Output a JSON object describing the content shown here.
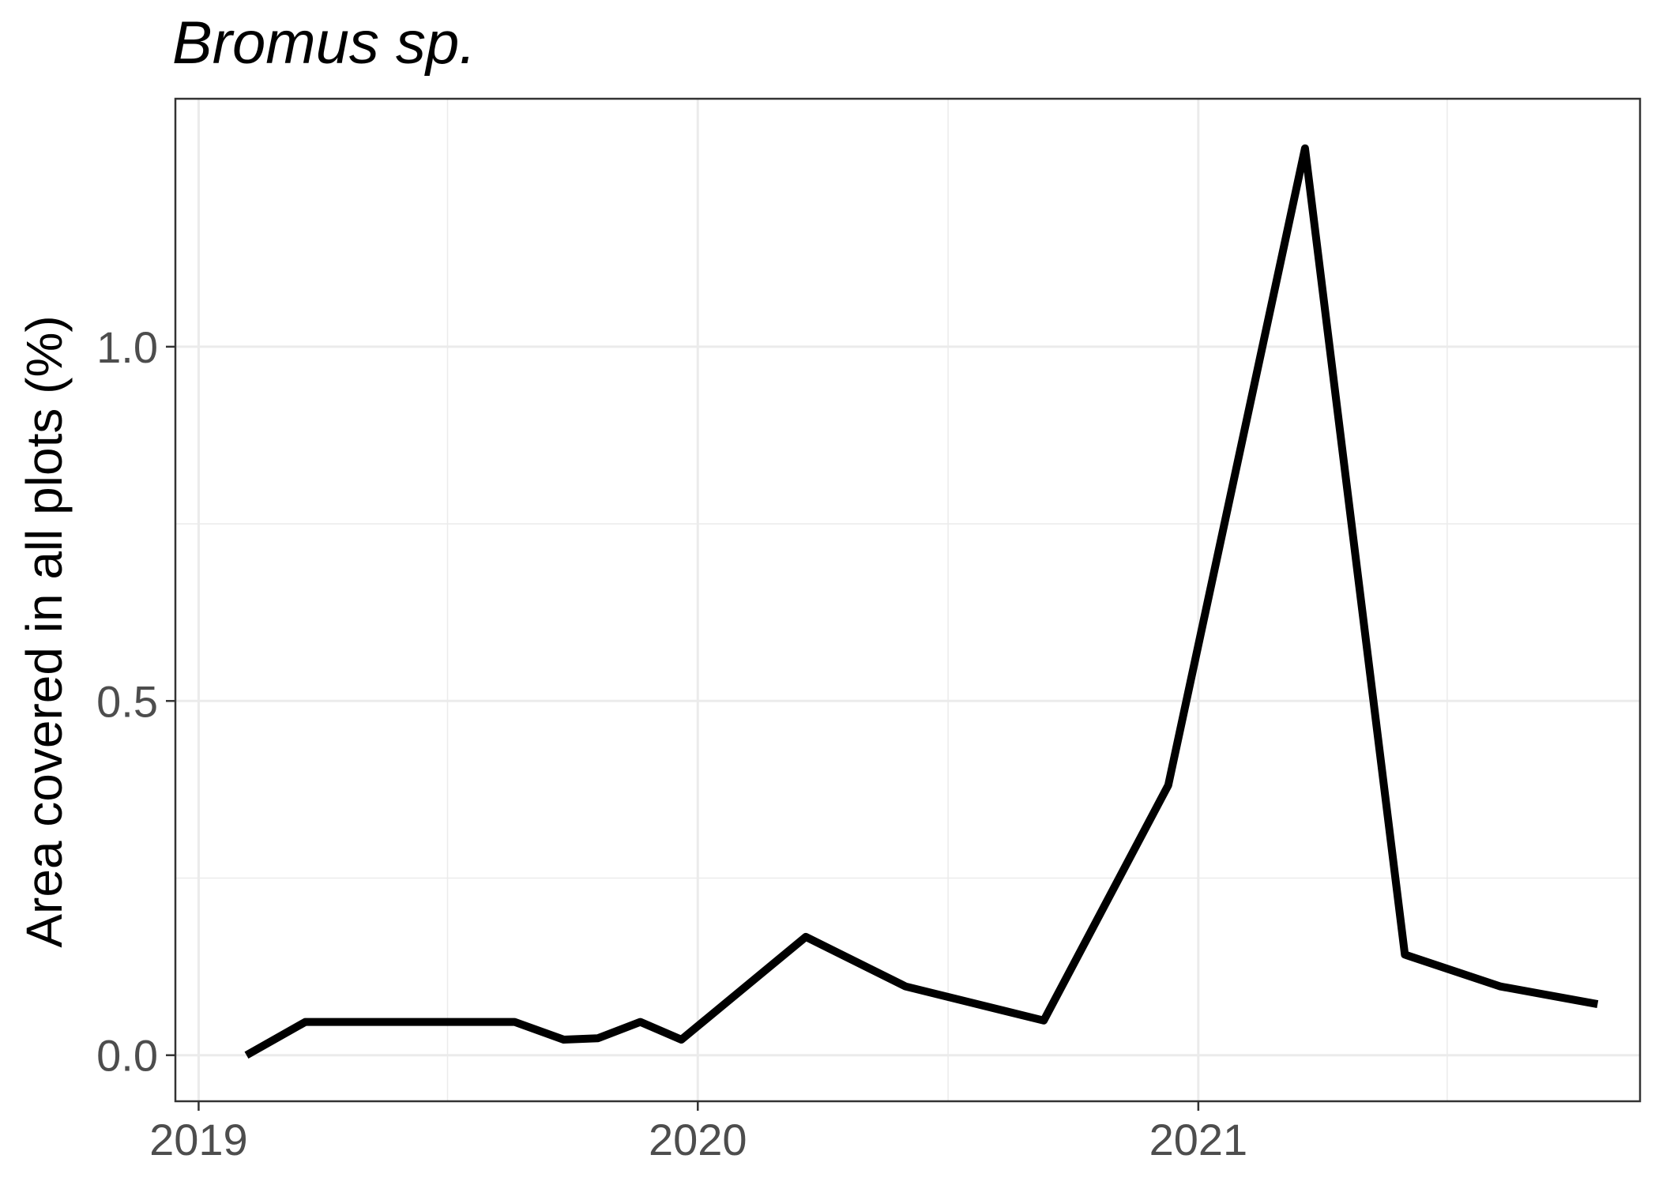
{
  "chart_data": {
    "type": "line",
    "title": "Bromus sp.",
    "xlabel": "",
    "ylabel": "Area covered in all plots (%)",
    "xlim": [
      "2018-12-15",
      "2021-11-20"
    ],
    "ylim": [
      -0.065,
      1.35
    ],
    "x_ticks": [
      "2019",
      "2020",
      "2021"
    ],
    "x_tick_dates": [
      "2019-01-01",
      "2020-01-01",
      "2021-01-01"
    ],
    "y_ticks": [
      0.0,
      0.5,
      1.0
    ],
    "y_tick_labels": [
      "0.0",
      "0.5",
      "1.0"
    ],
    "grid": true,
    "line_color": "#000000",
    "series": [
      {
        "x": [
          "2019-02-05",
          "2019-03-20",
          "2019-08-20",
          "2019-09-25",
          "2019-10-20",
          "2019-11-20",
          "2019-12-20",
          "2020-03-20",
          "2020-06-01",
          "2020-09-10",
          "2020-12-10",
          "2021-03-20",
          "2021-06-01",
          "2021-08-10",
          "2021-10-20"
        ],
        "y": [
          0.0,
          0.047,
          0.047,
          0.022,
          0.024,
          0.047,
          0.022,
          0.167,
          0.097,
          0.049,
          0.381,
          1.28,
          0.142,
          0.097,
          0.072
        ]
      }
    ]
  }
}
